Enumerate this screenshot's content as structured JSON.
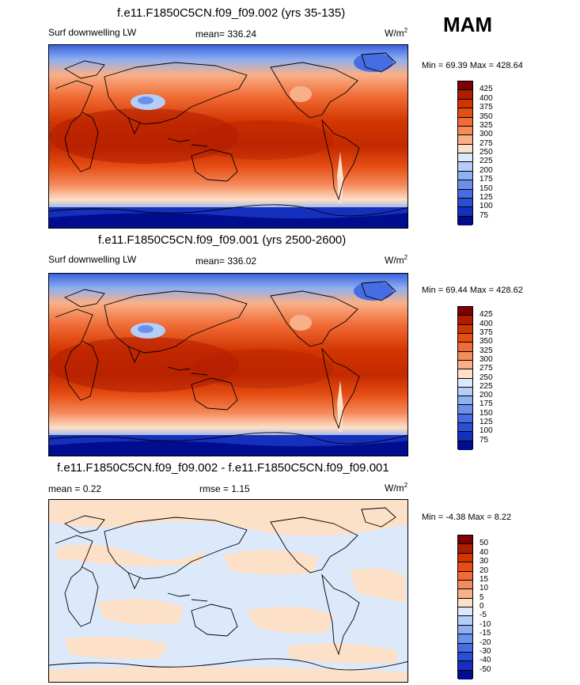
{
  "season": "MAM",
  "panels": [
    {
      "title": "f.e11.F1850C5CN.f09_f09.002 (yrs 35-135)",
      "left_label": "Surf downwelling LW",
      "mean_label": "mean= 336.24",
      "units_base": "W/m",
      "units_sup": "2",
      "minmax": "Min =  69.39 Max = 428.64",
      "colorbar_ticks": [
        "425",
        "400",
        "375",
        "350",
        "325",
        "300",
        "275",
        "250",
        "225",
        "200",
        "175",
        "150",
        "125",
        "100",
        "75"
      ]
    },
    {
      "title": "f.e11.F1850C5CN.f09_f09.001 (yrs 2500-2600)",
      "left_label": "Surf downwelling LW",
      "mean_label": "mean= 336.02",
      "units_base": "W/m",
      "units_sup": "2",
      "minmax": "Min =  69.44 Max = 428.62",
      "colorbar_ticks": [
        "425",
        "400",
        "375",
        "350",
        "325",
        "300",
        "275",
        "250",
        "225",
        "200",
        "175",
        "150",
        "125",
        "100",
        "75"
      ]
    },
    {
      "title": "f.e11.F1850C5CN.f09_f09.002 - f.e11.F1850C5CN.f09_f09.001",
      "left_label": "mean =   0.22",
      "mid_label": "rmse =   1.15",
      "units_base": "W/m",
      "units_sup": "2",
      "minmax": "Min =  -4.38 Max =   8.22",
      "colorbar_ticks": [
        "50",
        "40",
        "30",
        "20",
        "15",
        "10",
        "5",
        "0",
        "-5",
        "-10",
        "-15",
        "-20",
        "-30",
        "-40",
        "-50"
      ]
    }
  ],
  "colors": {
    "field_scale": [
      "#7f0000",
      "#b01c00",
      "#d33500",
      "#e64e14",
      "#f06b35",
      "#f58b5d",
      "#f9b089",
      "#fde0c8",
      "#dbe9fb",
      "#b5cef7",
      "#8fb0f1",
      "#6a90eb",
      "#466ee2",
      "#2a4fd6",
      "#1530bd",
      "#000d8f"
    ],
    "diff_scale": [
      "#7f0000",
      "#b01c00",
      "#d33500",
      "#e64e14",
      "#f06b35",
      "#f58b5d",
      "#f9b089",
      "#fde0c8",
      "#dbe9fb",
      "#b5cef7",
      "#8fb0f1",
      "#6a90eb",
      "#466ee2",
      "#2a4fd6",
      "#1530bd",
      "#000d8f"
    ]
  }
}
